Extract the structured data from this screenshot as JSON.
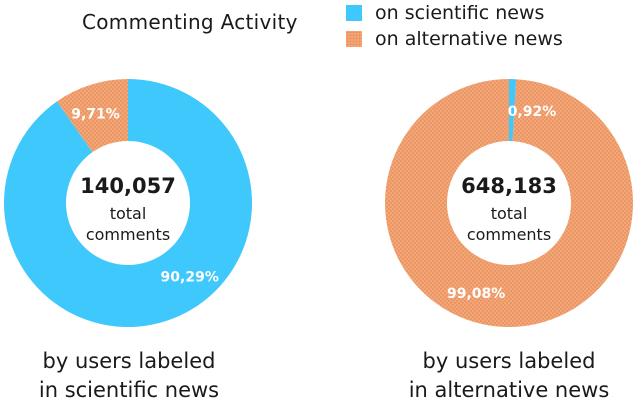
{
  "chart_data": {
    "type": "pie",
    "title": "Commenting Activity",
    "legend": [
      {
        "label": "on scientific news",
        "color": "#3fc8fb"
      },
      {
        "label": "on alternative news",
        "color": "#f2a778"
      }
    ],
    "charts": [
      {
        "total": "140,057",
        "total_label_line1": "total",
        "total_label_line2": "comments",
        "caption_line1": "by users labeled",
        "caption_line2": "in scientific news",
        "slices": [
          {
            "name": "on scientific news",
            "value": 90.29,
            "label": "90,29%"
          },
          {
            "name": "on alternative news",
            "value": 9.71,
            "label": "9,71%"
          }
        ]
      },
      {
        "total": "648,183",
        "total_label_line1": "total",
        "total_label_line2": "comments",
        "caption_line1": "by users labeled",
        "caption_line2": "in alternative news",
        "slices": [
          {
            "name": "on scientific news",
            "value": 0.92,
            "label": "0,92%"
          },
          {
            "name": "on alternative news",
            "value": 99.08,
            "label": "99,08%"
          }
        ]
      }
    ]
  }
}
